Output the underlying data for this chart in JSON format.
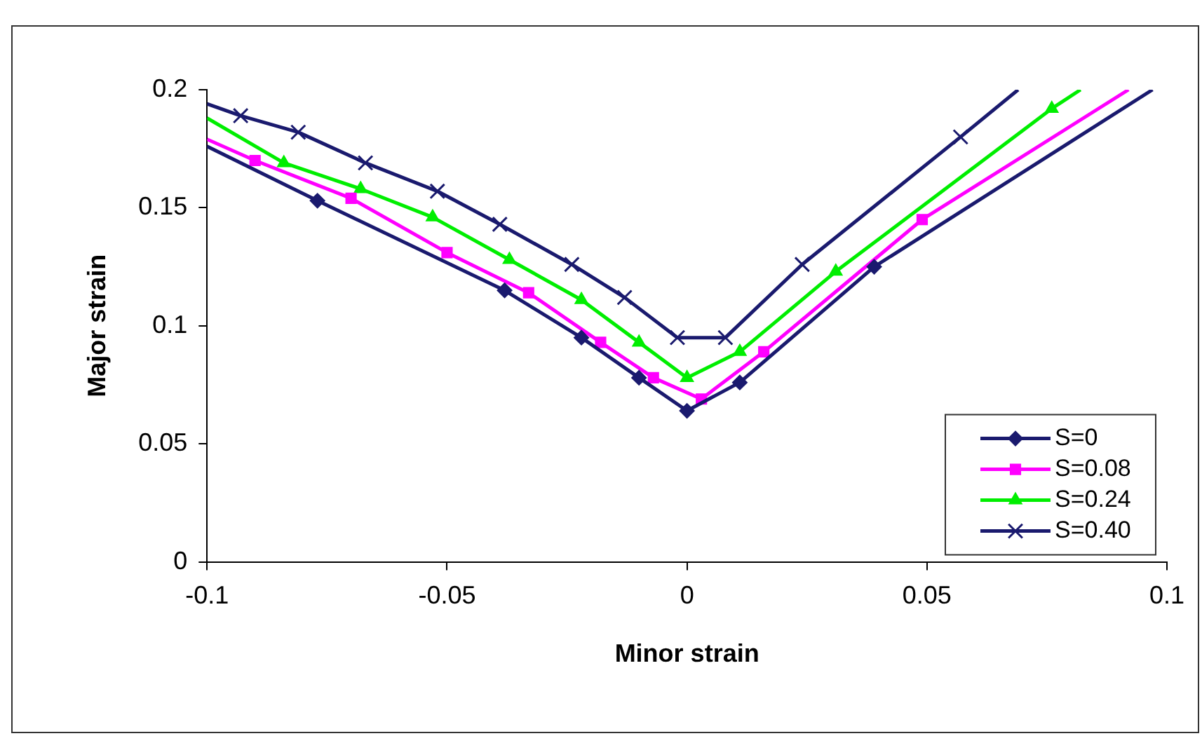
{
  "chart_data": {
    "type": "line",
    "xlabel": "Minor strain",
    "ylabel": "Major strain",
    "xlim": [
      -0.1,
      0.1
    ],
    "xticks": [
      -0.1,
      -0.05,
      0,
      0.05,
      0.1
    ],
    "ylim": [
      0,
      0.2
    ],
    "yticks": [
      0,
      0.05,
      0.1,
      0.15,
      0.2
    ],
    "grid": false,
    "legend": "bottom right",
    "line_style": "solid",
    "series": [
      {
        "name": "S=0",
        "color": "#1a1a6e",
        "marker": "diamond",
        "x": [
          -0.1,
          -0.077,
          -0.038,
          -0.022,
          -0.01,
          0,
          0.011,
          0.039,
          0.097
        ],
        "values": [
          0.176,
          0.153,
          0.115,
          0.095,
          0.078,
          0.064,
          0.076,
          0.125,
          0.2
        ]
      },
      {
        "name": "S=0.08",
        "color": "#ff00ff",
        "marker": "square",
        "x": [
          -0.1,
          -0.09,
          -0.07,
          -0.05,
          -0.033,
          -0.018,
          -0.007,
          0.003,
          0.016,
          0.049,
          0.092
        ],
        "values": [
          0.179,
          0.17,
          0.154,
          0.131,
          0.114,
          0.093,
          0.078,
          0.069,
          0.089,
          0.145,
          0.2
        ]
      },
      {
        "name": "S=0.24",
        "color": "#00ee00",
        "marker": "triangle",
        "x": [
          -0.1,
          -0.084,
          -0.068,
          -0.053,
          -0.037,
          -0.022,
          -0.01,
          0,
          0.011,
          0.031,
          0.076,
          0.082
        ],
        "values": [
          0.188,
          0.169,
          0.158,
          0.146,
          0.128,
          0.111,
          0.093,
          0.078,
          0.089,
          0.123,
          0.192,
          0.2
        ]
      },
      {
        "name": "S=0.40",
        "color": "#1a1a6e",
        "marker": "cross",
        "x": [
          -0.1,
          -0.093,
          -0.081,
          -0.067,
          -0.052,
          -0.039,
          -0.024,
          -0.013,
          -0.002,
          0.008,
          0.024,
          0.057,
          0.069
        ],
        "values": [
          0.194,
          0.189,
          0.182,
          0.169,
          0.157,
          0.143,
          0.126,
          0.112,
          0.095,
          0.095,
          0.126,
          0.18,
          0.2
        ]
      }
    ]
  }
}
